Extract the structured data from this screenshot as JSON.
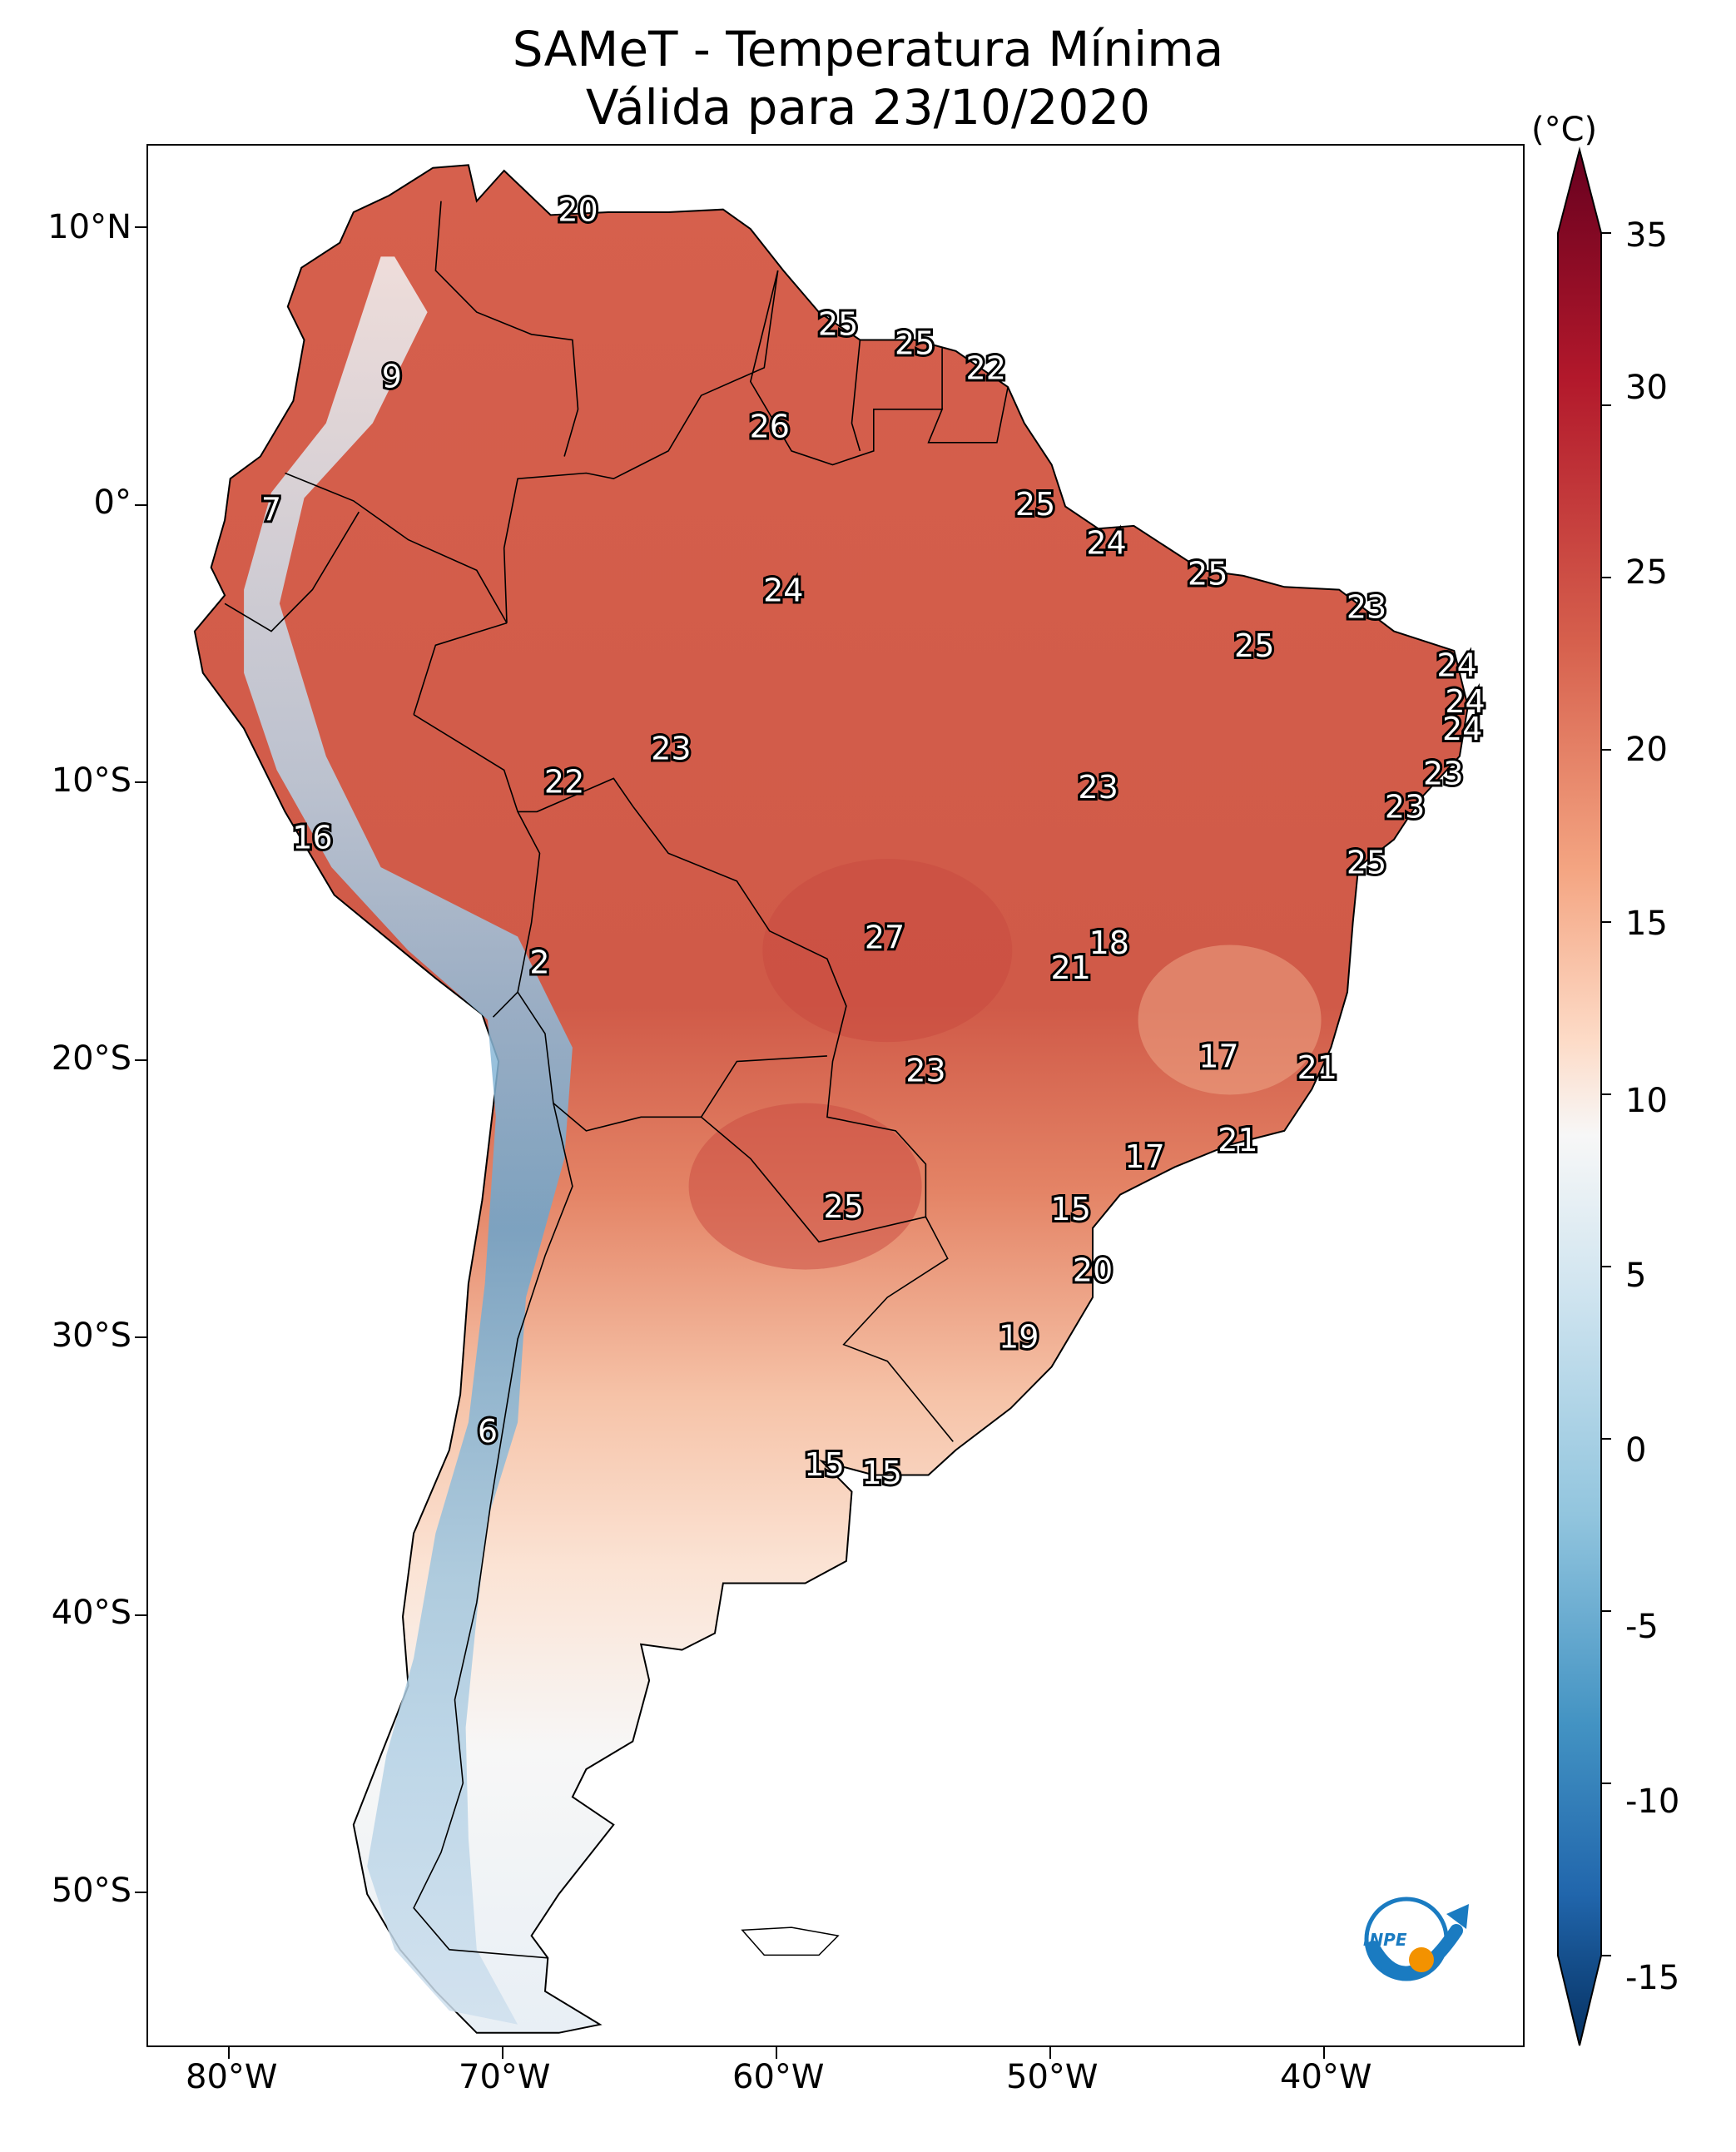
{
  "title_line1": "SAMeT - Temperatura Mínima",
  "title_line2": "Válida para 23/10/2020",
  "colorbar": {
    "unit": "(°C)",
    "ticks": [
      "35",
      "30",
      "25",
      "20",
      "15",
      "10",
      "5",
      "0",
      "-5",
      "-10",
      "-15"
    ]
  },
  "lat_ticks": [
    "10°N",
    "0°",
    "10°S",
    "20°S",
    "30°S",
    "40°S",
    "50°S"
  ],
  "lon_ticks": [
    "80°W",
    "70°W",
    "60°W",
    "50°W",
    "40°W"
  ],
  "labels": [
    {
      "text": "20",
      "lon": -67.3,
      "lat": 10.6
    },
    {
      "text": "9",
      "lon": -74.1,
      "lat": 4.6
    },
    {
      "text": "25",
      "lon": -57.8,
      "lat": 6.5
    },
    {
      "text": "25",
      "lon": -55.0,
      "lat": 5.8
    },
    {
      "text": "22",
      "lon": -52.4,
      "lat": 4.9
    },
    {
      "text": "26",
      "lon": -60.3,
      "lat": 2.8
    },
    {
      "text": "7",
      "lon": -78.5,
      "lat": -0.2
    },
    {
      "text": "25",
      "lon": -50.6,
      "lat": 0.0
    },
    {
      "text": "24",
      "lon": -48.0,
      "lat": -1.4
    },
    {
      "text": "25",
      "lon": -44.3,
      "lat": -2.5
    },
    {
      "text": "23",
      "lon": -38.5,
      "lat": -3.7
    },
    {
      "text": "24",
      "lon": -59.8,
      "lat": -3.1
    },
    {
      "text": "25",
      "lon": -42.6,
      "lat": -5.1
    },
    {
      "text": "24",
      "lon": -35.2,
      "lat": -5.8
    },
    {
      "text": "24",
      "lon": -34.9,
      "lat": -7.1
    },
    {
      "text": "24",
      "lon": -35.0,
      "lat": -8.1
    },
    {
      "text": "23",
      "lon": -63.9,
      "lat": -8.8
    },
    {
      "text": "22",
      "lon": -67.8,
      "lat": -10.0
    },
    {
      "text": "23",
      "lon": -48.3,
      "lat": -10.2
    },
    {
      "text": "23",
      "lon": -35.7,
      "lat": -9.7
    },
    {
      "text": "23",
      "lon": -37.1,
      "lat": -10.9
    },
    {
      "text": "16",
      "lon": -77.0,
      "lat": -12.0
    },
    {
      "text": "25",
      "lon": -38.5,
      "lat": -12.9
    },
    {
      "text": "27",
      "lon": -56.1,
      "lat": -15.6
    },
    {
      "text": "18",
      "lon": -47.9,
      "lat": -15.8
    },
    {
      "text": "21",
      "lon": -49.3,
      "lat": -16.7
    },
    {
      "text": "2",
      "lon": -68.7,
      "lat": -16.5
    },
    {
      "text": "17",
      "lon": -43.9,
      "lat": -19.9
    },
    {
      "text": "21",
      "lon": -40.3,
      "lat": -20.3
    },
    {
      "text": "23",
      "lon": -54.6,
      "lat": -20.4
    },
    {
      "text": "21",
      "lon": -43.2,
      "lat": -22.9
    },
    {
      "text": "17",
      "lon": -46.6,
      "lat": -23.5
    },
    {
      "text": "25",
      "lon": -57.6,
      "lat": -25.3
    },
    {
      "text": "15",
      "lon": -49.3,
      "lat": -25.4
    },
    {
      "text": "20",
      "lon": -48.5,
      "lat": -27.6
    },
    {
      "text": "19",
      "lon": -51.2,
      "lat": -30.0
    },
    {
      "text": "6",
      "lon": -70.6,
      "lat": -33.4
    },
    {
      "text": "15",
      "lon": -58.3,
      "lat": -34.6
    },
    {
      "text": "15",
      "lon": -56.2,
      "lat": -34.9
    }
  ]
}
